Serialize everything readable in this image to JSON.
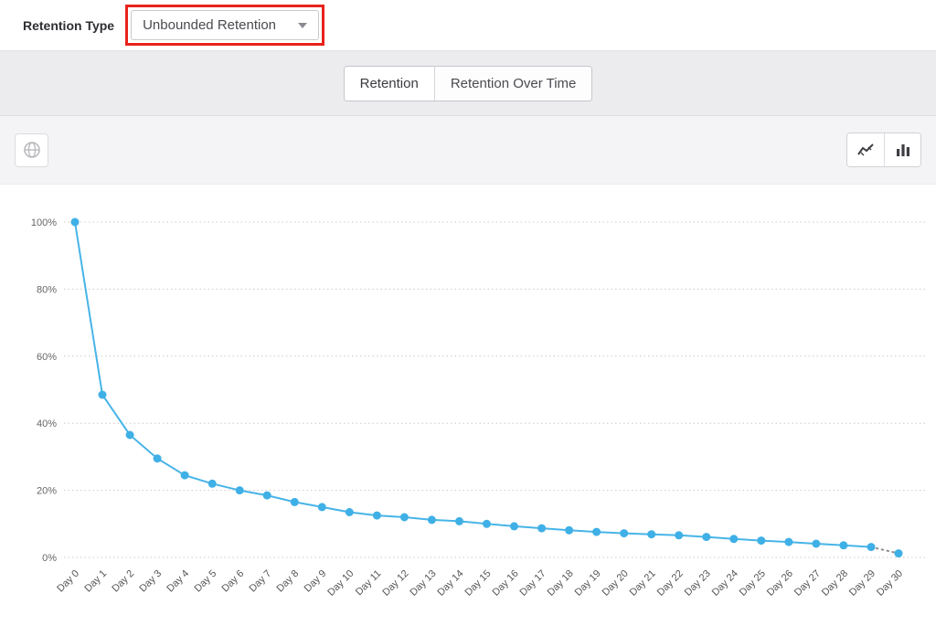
{
  "header": {
    "retention_type_label": "Retention Type",
    "dropdown_value": "Unbounded Retention",
    "annotation_color": "#e8231c"
  },
  "tabs": [
    {
      "label": "Retention",
      "active": true
    },
    {
      "label": "Retention Over Time",
      "active": false
    }
  ],
  "toolbar": {
    "left_icon": "globe-icon",
    "chart_type_buttons": [
      {
        "icon": "line-chart-icon",
        "active": true
      },
      {
        "icon": "bar-chart-icon",
        "active": false
      }
    ]
  },
  "chart_data": {
    "type": "line",
    "title": "",
    "xlabel": "",
    "ylabel": "",
    "categories": [
      "Day 0",
      "Day 1",
      "Day 2",
      "Day 3",
      "Day 4",
      "Day 5",
      "Day 6",
      "Day 7",
      "Day 8",
      "Day 9",
      "Day 10",
      "Day 11",
      "Day 12",
      "Day 13",
      "Day 14",
      "Day 15",
      "Day 16",
      "Day 17",
      "Day 18",
      "Day 19",
      "Day 20",
      "Day 21",
      "Day 22",
      "Day 23",
      "Day 24",
      "Day 25",
      "Day 26",
      "Day 27",
      "Day 28",
      "Day 29",
      "Day 30"
    ],
    "values": [
      100,
      48.5,
      36.5,
      29.5,
      24.5,
      22,
      20,
      18.5,
      16.5,
      15,
      13.5,
      12.5,
      12,
      11.2,
      10.8,
      10,
      9.3,
      8.7,
      8.1,
      7.6,
      7.2,
      6.9,
      6.6,
      6.1,
      5.5,
      5,
      4.6,
      4.1,
      3.6,
      3.1,
      1.2
    ],
    "ylim": [
      0,
      100
    ],
    "yticks": [
      0,
      20,
      40,
      60,
      80,
      100
    ],
    "ytick_labels": [
      "0%",
      "20%",
      "40%",
      "60%",
      "80%",
      "100%"
    ],
    "grid": "dotted-horizontal",
    "legend": "none",
    "line_color": "#47b4e8",
    "point_color": "#3fb0e6",
    "incomplete_color": "#8b8b8b",
    "last_segment_style": "dotted"
  }
}
